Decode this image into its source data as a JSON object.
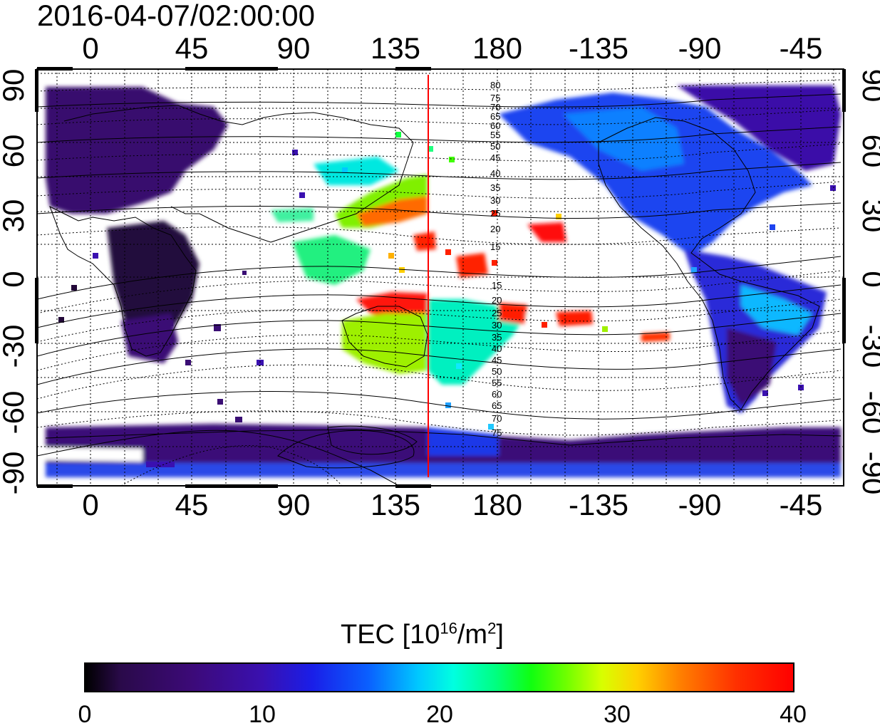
{
  "title": "2016-04-07/02:00:00",
  "map": {
    "top_ticks": [
      "0",
      "45",
      "90",
      "135",
      "180",
      "-135",
      "-90",
      "-45"
    ],
    "bottom_ticks": [
      "0",
      "45",
      "90",
      "135",
      "180",
      "-135",
      "-90",
      "-45"
    ],
    "left_ticks": [
      "90",
      "60",
      "30",
      "0",
      "-30",
      "-60",
      "-90"
    ],
    "right_ticks": [
      "90",
      "60",
      "30",
      "0",
      "-30",
      "-60",
      "-90"
    ],
    "contour_labels_north": [
      "80",
      "75",
      "70",
      "65",
      "60",
      "55",
      "50",
      "45",
      "40",
      "35",
      "30",
      "25",
      "20",
      "15"
    ],
    "contour_labels_south": [
      "15",
      "20",
      "25",
      "30",
      "35",
      "40",
      "45",
      "50",
      "55",
      "60",
      "65",
      "70",
      "75"
    ],
    "terminator_color": "#ff0000"
  },
  "colorbar": {
    "title": "TEC  [10",
    "title_sup1": "16",
    "title_mid": "/m",
    "title_sup2": "2",
    "title_end": "]",
    "ticks": [
      "0",
      "10",
      "20",
      "30",
      "40"
    ]
  }
}
